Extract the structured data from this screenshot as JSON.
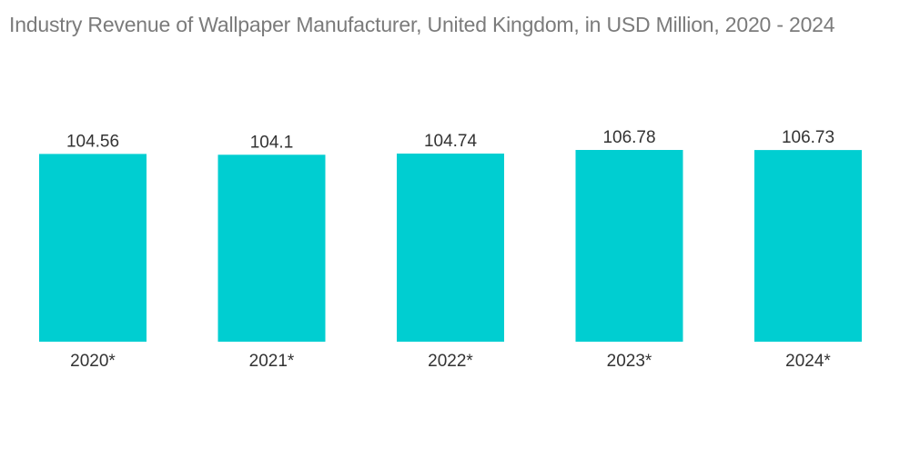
{
  "colors": {
    "bar": "#00CED1",
    "title": "#7b7b7b",
    "label": "#333333",
    "background": "#ffffff"
  },
  "chart_data": {
    "type": "bar",
    "title": "Industry Revenue of Wallpaper Manufacturer, United Kingdom, in USD Million, 2020 - 2024",
    "categories": [
      "2020*",
      "2021*",
      "2022*",
      "2023*",
      "2024*"
    ],
    "values": [
      104.56,
      104.1,
      104.74,
      106.78,
      106.73
    ],
    "value_labels": [
      "104.56",
      "104.1",
      "104.74",
      "106.78",
      "106.73"
    ],
    "xlabel": "",
    "ylabel": "",
    "ylim": [
      0,
      106.78
    ],
    "grid": false,
    "legend": "none"
  }
}
